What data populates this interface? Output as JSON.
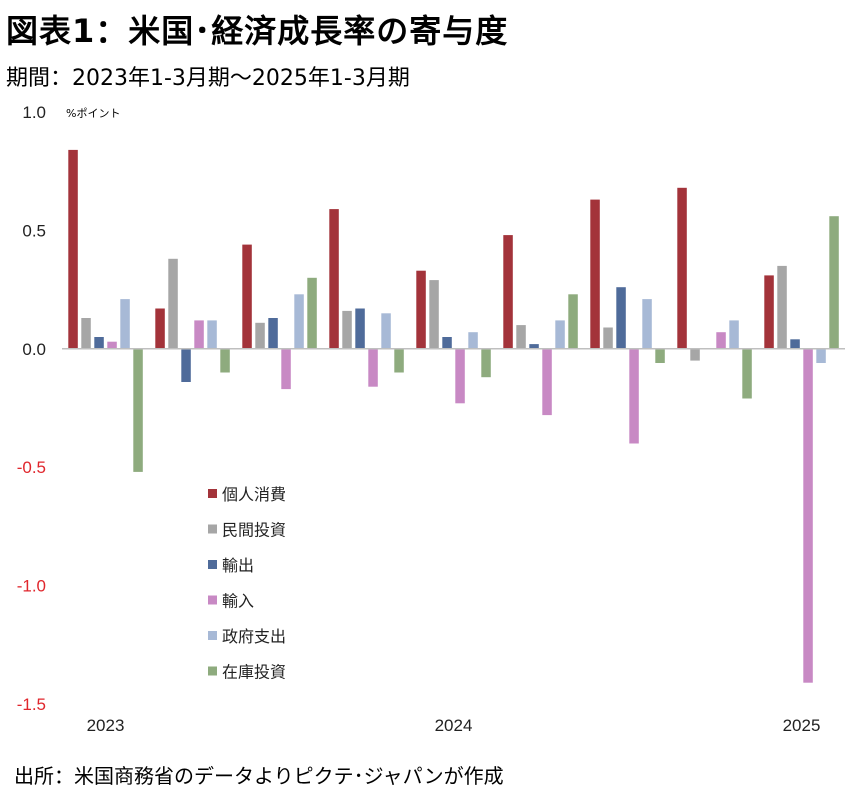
{
  "header": {
    "title": "図表1：米国･経済成長率の寄与度",
    "subtitle": "期間：2023年1-3月期～2025年1-3月期"
  },
  "footer": {
    "source": "出所：米国商務省のデータよりピクテ･ジャパンが作成"
  },
  "chart_data": {
    "type": "bar",
    "unit_label": "%ポイント",
    "ylim": [
      -1.5,
      1.0
    ],
    "yticks": [
      1.0,
      0.5,
      0.0,
      -0.5,
      -1.0,
      -1.5
    ],
    "ytick_labels": [
      "1.0",
      "0.5",
      "0.0",
      "-0.5",
      "-1.0",
      "-1.5"
    ],
    "negative_tick_color": "#e0262c",
    "categories": [
      "2023 Q1",
      "2023 Q2",
      "2023 Q3",
      "2023 Q4",
      "2024 Q1",
      "2024 Q2",
      "2024 Q3",
      "2024 Q4",
      "2025 Q1"
    ],
    "x_axis_labels": [
      {
        "category_index": 0,
        "text": "2023"
      },
      {
        "category_index": 4,
        "text": "2024"
      },
      {
        "category_index": 8,
        "text": "2025"
      }
    ],
    "legend_position": "lower-left",
    "grid": false,
    "series": [
      {
        "name": "個人消費",
        "color": "#a3333a",
        "values": [
          0.84,
          0.17,
          0.44,
          0.59,
          0.33,
          0.48,
          0.63,
          0.68,
          0.31
        ]
      },
      {
        "name": "民間投資",
        "color": "#a6a6a6",
        "values": [
          0.13,
          0.38,
          0.11,
          0.16,
          0.29,
          0.1,
          0.09,
          -0.05,
          0.35
        ]
      },
      {
        "name": "輸出",
        "color": "#4f6b9a",
        "values": [
          0.05,
          -0.14,
          0.13,
          0.17,
          0.05,
          0.02,
          0.26,
          0.0,
          0.04
        ]
      },
      {
        "name": "輸入",
        "color": "#c889c4",
        "values": [
          0.03,
          0.12,
          -0.17,
          -0.16,
          -0.23,
          -0.28,
          -0.4,
          0.07,
          -1.41
        ]
      },
      {
        "name": "政府支出",
        "color": "#a7b9d6",
        "values": [
          0.21,
          0.12,
          0.23,
          0.15,
          0.07,
          0.12,
          0.21,
          0.12,
          -0.06
        ]
      },
      {
        "name": "在庫投資",
        "color": "#8eab7e",
        "values": [
          -0.52,
          -0.1,
          0.3,
          -0.1,
          -0.12,
          0.23,
          -0.06,
          -0.21,
          0.56
        ]
      }
    ]
  }
}
